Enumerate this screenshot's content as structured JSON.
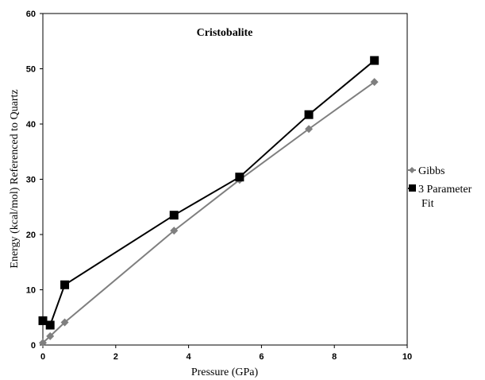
{
  "chart_data": {
    "type": "line",
    "title": "Cristobalite",
    "xlabel": "Pressure (GPa)",
    "ylabel": "Energy (kcal/mol) Referenced to Quartz",
    "xlim": [
      0,
      10
    ],
    "ylim": [
      0,
      60
    ],
    "x_ticks": [
      "0",
      "2",
      "4",
      "6",
      "8",
      "10"
    ],
    "y_ticks": [
      "0",
      "10",
      "20",
      "30",
      "40",
      "50",
      "60"
    ],
    "grid": false,
    "legend_position": "right",
    "series": [
      {
        "name": "Gibbs",
        "marker": "diamond",
        "color": "#7f7f7f",
        "x": [
          0.0,
          0.2,
          0.6,
          3.6,
          5.4,
          7.3,
          9.1
        ],
        "y": [
          0.4,
          1.6,
          4.1,
          20.7,
          29.9,
          39.1,
          47.6
        ]
      },
      {
        "name": "3 Parameter Fit",
        "legend_lines": [
          "3 Parameter",
          "Fit"
        ],
        "marker": "square",
        "color": "#000000",
        "x": [
          0.0,
          0.2,
          0.6,
          3.6,
          5.4,
          7.3,
          9.1
        ],
        "y": [
          4.4,
          3.6,
          10.9,
          23.5,
          30.4,
          41.7,
          51.5
        ]
      }
    ]
  }
}
